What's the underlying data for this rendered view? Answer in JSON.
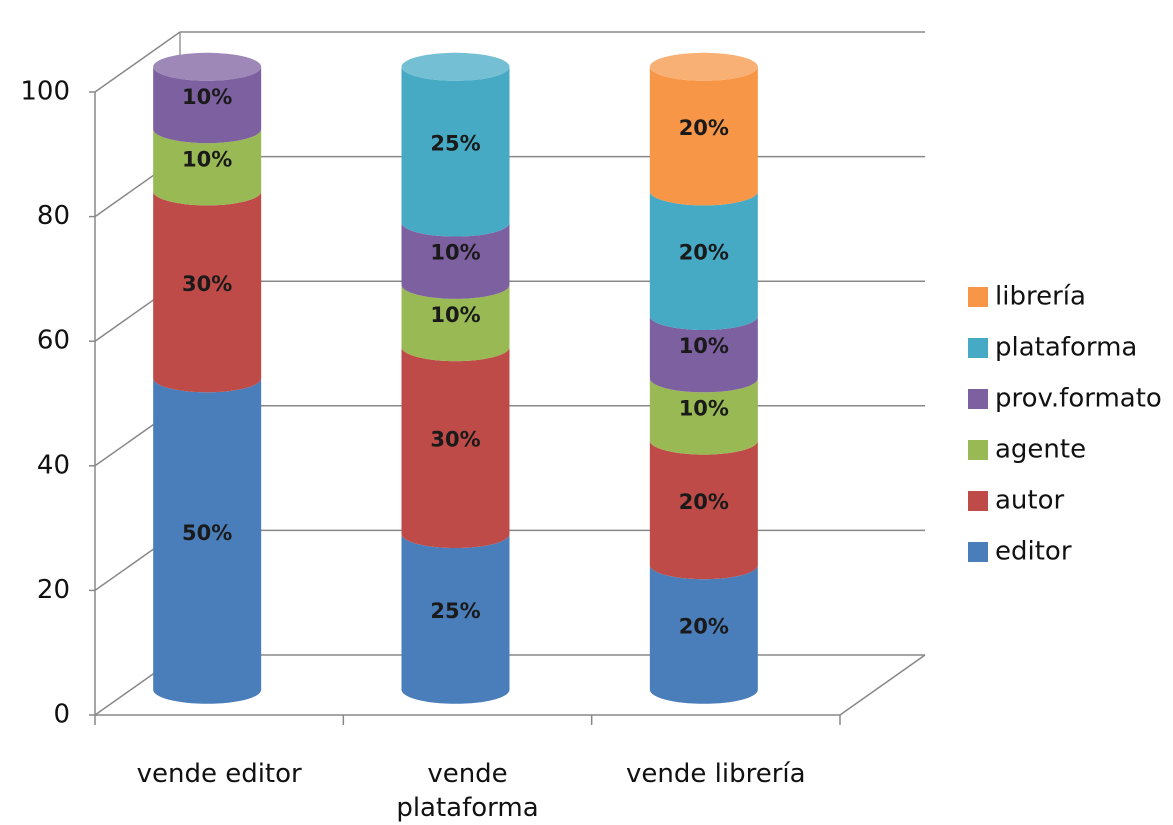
{
  "chart_data": {
    "type": "bar3d_stacked",
    "categories": [
      "vende editor",
      "vende plataforma",
      "vende librería"
    ],
    "series": [
      {
        "name": "editor",
        "color": "#4a7ebb",
        "values": [
          50,
          25,
          20
        ],
        "value_labels": [
          "50%",
          "25%",
          "20%"
        ]
      },
      {
        "name": "autor",
        "color": "#be4b48",
        "values": [
          30,
          30,
          20
        ],
        "value_labels": [
          "30%",
          "30%",
          "20%"
        ]
      },
      {
        "name": "agente",
        "color": "#98b954",
        "values": [
          10,
          10,
          10
        ],
        "value_labels": [
          "10%",
          "10%",
          "10%"
        ]
      },
      {
        "name": "prov.formato",
        "color": "#7d60a0",
        "values": [
          10,
          10,
          10
        ],
        "value_labels": [
          "10%",
          "10%",
          "10%"
        ]
      },
      {
        "name": "plataforma",
        "color": "#46aac5",
        "values": [
          0,
          25,
          20
        ],
        "value_labels": [
          null,
          "25%",
          "20%"
        ]
      },
      {
        "name": "librería",
        "color": "#f79646",
        "values": [
          0,
          0,
          20
        ],
        "value_labels": [
          null,
          null,
          "20%"
        ]
      }
    ],
    "ylim": [
      0,
      100
    ],
    "yticks": [
      0,
      20,
      40,
      60,
      80,
      100
    ],
    "grid": true,
    "legend": "right"
  }
}
